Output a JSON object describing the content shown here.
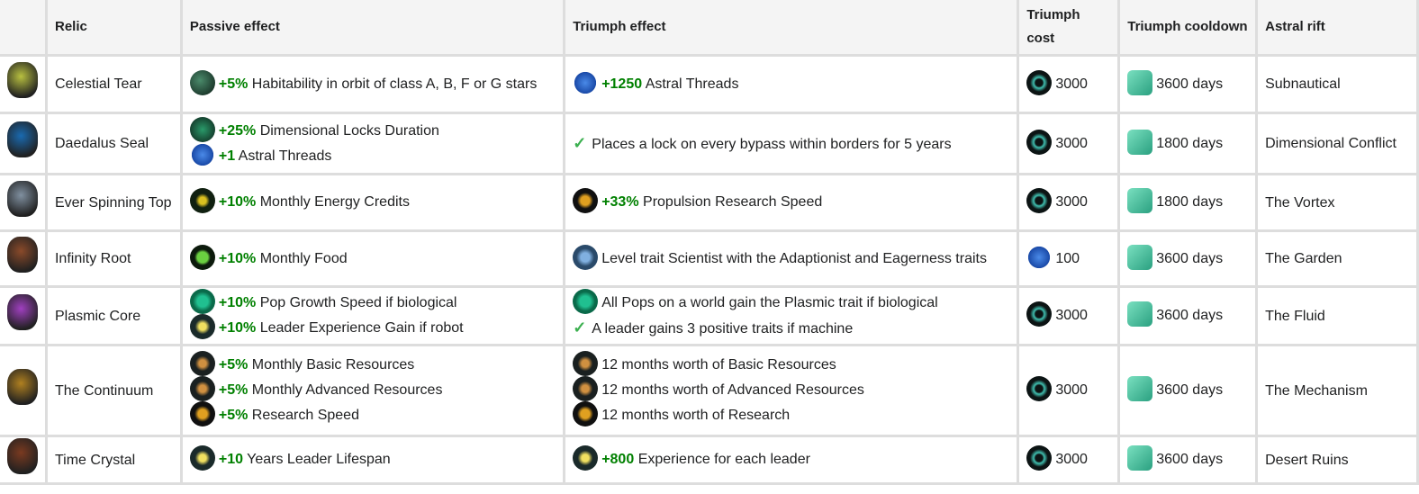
{
  "columns": [
    "",
    "Relic",
    "Passive effect",
    "Triumph effect",
    "Triumph cost",
    "Triumph cooldown",
    "Astral rift"
  ],
  "colors": {
    "positive": "#008000",
    "header_bg": "#f4f4f4",
    "border": "#dddddd"
  },
  "rows": [
    {
      "relic": "Celestial Tear",
      "relic_icon": "celestial-tear-icon",
      "relic_color": "#b8c040",
      "passive": [
        {
          "icon": "habit",
          "value": "+5%",
          "text": "Habitability in orbit of class A, B, F or G stars"
        }
      ],
      "triumph": [
        {
          "icon": "thread",
          "value": "+1250",
          "text": "Astral Threads"
        }
      ],
      "cost_icon": "triumph",
      "cost": "3000",
      "cooldown": "3600 days",
      "rift": "Subnautical"
    },
    {
      "relic": "Daedalus Seal",
      "relic_icon": "daedalus-seal-icon",
      "relic_color": "#1a6ab0",
      "passive": [
        {
          "icon": "lock",
          "value": "+25%",
          "text": "Dimensional Locks Duration"
        },
        {
          "icon": "thread",
          "value": "+1",
          "text": "Astral Threads"
        }
      ],
      "triumph": [
        {
          "icon": "check",
          "value": "",
          "text": "Places a lock on every bypass within borders for 5 years"
        }
      ],
      "cost_icon": "triumph",
      "cost": "3000",
      "cooldown": "1800 days",
      "rift": "Dimensional Conflict"
    },
    {
      "relic": "Ever Spinning Top",
      "relic_icon": "ever-spinning-top-icon",
      "relic_color": "#8090a0",
      "passive": [
        {
          "icon": "energy",
          "value": "+10%",
          "text": "Monthly Energy Credits"
        }
      ],
      "triumph": [
        {
          "icon": "prop",
          "value": "+33%",
          "text": "Propulsion Research Speed"
        }
      ],
      "cost_icon": "triumph",
      "cost": "3000",
      "cooldown": "1800 days",
      "rift": "The Vortex"
    },
    {
      "relic": "Infinity Root",
      "relic_icon": "infinity-root-icon",
      "relic_color": "#8a4a2a",
      "passive": [
        {
          "icon": "food",
          "value": "+10%",
          "text": "Monthly Food"
        }
      ],
      "triumph": [
        {
          "icon": "sci",
          "value": "",
          "text": "Level trait Scientist with the Adaptionist and Eagerness traits"
        }
      ],
      "cost_icon": "thread",
      "cost": "100",
      "cooldown": "3600 days",
      "rift": "The Garden"
    },
    {
      "relic": "Plasmic Core",
      "relic_icon": "plasmic-core-icon",
      "relic_color": "#a040c0",
      "passive": [
        {
          "icon": "pop",
          "value": "+10%",
          "text": "Pop Growth Speed if biological"
        },
        {
          "icon": "star",
          "value": "+10%",
          "text": "Leader Experience Gain if robot"
        }
      ],
      "triumph": [
        {
          "icon": "pop",
          "value": "",
          "text": "All Pops on a world gain the Plasmic trait if biological"
        },
        {
          "icon": "check",
          "value": "",
          "text": "A leader gains 3 positive traits if machine"
        }
      ],
      "cost_icon": "triumph",
      "cost": "3000",
      "cooldown": "3600 days",
      "rift": "The Fluid"
    },
    {
      "relic": "The Continuum",
      "relic_icon": "the-continuum-icon",
      "relic_color": "#b08020",
      "passive": [
        {
          "icon": "res",
          "value": "+5%",
          "text": "Monthly Basic Resources"
        },
        {
          "icon": "res",
          "value": "+5%",
          "text": "Monthly Advanced Resources"
        },
        {
          "icon": "prop",
          "value": "+5%",
          "text": "Research Speed"
        }
      ],
      "triumph": [
        {
          "icon": "res",
          "value": "",
          "text": "12 months worth of Basic Resources"
        },
        {
          "icon": "res",
          "value": "",
          "text": "12 months worth of Advanced Resources"
        },
        {
          "icon": "prop",
          "value": "",
          "text": "12 months worth of Research"
        }
      ],
      "cost_icon": "triumph",
      "cost": "3000",
      "cooldown": "3600 days",
      "rift": "The Mechanism"
    },
    {
      "relic": "Time Crystal",
      "relic_icon": "time-crystal-icon",
      "relic_color": "#7a3a20",
      "passive": [
        {
          "icon": "star",
          "value": "+10",
          "text": "Years Leader Lifespan"
        }
      ],
      "triumph": [
        {
          "icon": "star",
          "value": "+800",
          "text": "Experience for each leader"
        }
      ],
      "cost_icon": "triumph",
      "cost": "3000",
      "cooldown": "3600 days",
      "rift": "Desert Ruins"
    }
  ]
}
